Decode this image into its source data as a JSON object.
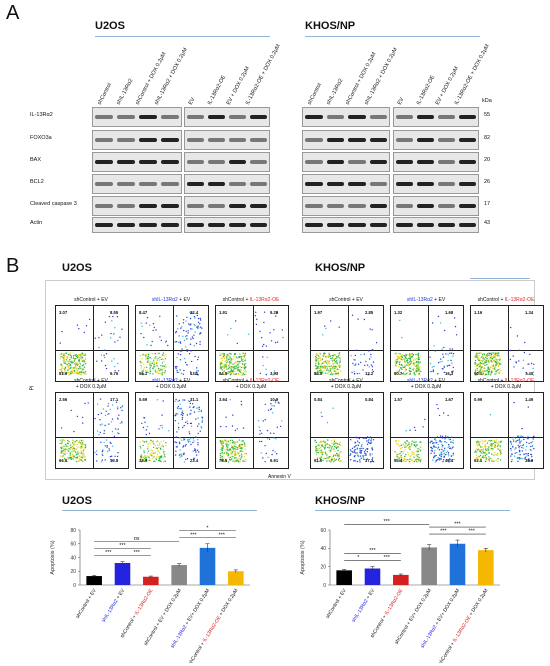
{
  "panel_a": {
    "letter": "A",
    "u2os": {
      "title": "U2OS",
      "lanes_left": [
        "shControl",
        "shIL-13Rα2",
        "shControl + DOX 0.2μM",
        "shIL-13Rα2 + DOX 0.2μM"
      ],
      "lanes_right": [
        "EV",
        "IL-13Rα2-OE",
        "EV + DOX 0.2μM",
        "IL-13Rα2-OE + DOX 0.2μM"
      ]
    },
    "khos": {
      "title": "KHOS/NP",
      "lanes_left": [
        "shControl",
        "shIL-13Rα2",
        "shControl + DOX 0.2μM",
        "shIL-13Rα2 + DOX 0.2μM"
      ],
      "lanes_right": [
        "EV",
        "IL-13Rα2-OE",
        "EV + DOX 0.2μM",
        "IL-13Rα2-OE + DOX 0.2μM"
      ]
    },
    "kda_label": "kDa",
    "rows": [
      {
        "label": "IL-13Rα2",
        "kda": "55"
      },
      {
        "label": "FOXO3a",
        "kda": "82"
      },
      {
        "label": "BAX",
        "kda": "20"
      },
      {
        "label": "BCL2",
        "kda": "26"
      },
      {
        "label": "Cleaved caspase 3",
        "kda": "17"
      },
      {
        "label": "Actin",
        "kda": "43"
      }
    ]
  },
  "panel_b": {
    "letter": "B",
    "u2os_title": "U2OS",
    "khos_title": "KHOS/NP",
    "pi_label": "PI",
    "annexin_label": "Annexin V",
    "u2os_flow": [
      {
        "t1": "shControl + EV",
        "t1b": "",
        "t2": "",
        "t2b": "",
        "ul": "3.07",
        "ur": "8.55",
        "ll": "81.6",
        "lr": "6.76"
      },
      {
        "t1": "shIL-13Rα2",
        "t1b": " + EV",
        "t2": "",
        "t2b": "",
        "ul": "8.47",
        "ur": "22.4",
        "ll": "56.1",
        "lr": "13.1"
      },
      {
        "t1": "shControl + ",
        "t1b": "IL-13Rα2-OE",
        "t2": "",
        "t2b": "",
        "ul": "1.91",
        "ur": "9.28",
        "ll": "84.9",
        "lr": "3.93"
      },
      {
        "t1": "shControl + EV",
        "t1b": "",
        "t2": "+ DOX 0.2μM",
        "t2b": "",
        "ul": "2.56",
        "ur": "17.1",
        "ll": "66.5",
        "lr": "13.8"
      },
      {
        "t1": "shIL-13Rα2",
        "t1b": " + EV",
        "t2": "+ DOX 0.2μM",
        "t2b": "",
        "ul": "5.69",
        "ur": "31.1",
        "ll": "38.9",
        "lr": "23.4"
      },
      {
        "t1": "shControl + ",
        "t1b": "IL-13Rα2-OE",
        "t2": "+ DOX 0.2μM",
        "t2b": "",
        "ul": "3.64",
        "ur": "10.9",
        "ll": "78.5",
        "lr": "6.91"
      }
    ],
    "khos_flow": [
      {
        "t1": "shControl + EV",
        "t1b": "",
        "t2": "",
        "ul": "1.97",
        "ur": "2.85",
        "ll": "83.0",
        "lr": "12.2"
      },
      {
        "t1": "shIL-13Rα2",
        "t1b": " + EV",
        "t2": "",
        "ul": "1.32",
        "ur": "1.68",
        "ll": "80.7",
        "lr": "16.3"
      },
      {
        "t1": "shControl + ",
        "t1b": "IL-13Rα2-OE",
        "t2": "",
        "ul": "1.16",
        "ur": "1.34",
        "ll": "90.1",
        "lr": "7.40"
      },
      {
        "t1": "shControl + EV",
        "t1b": "",
        "t2": "+ DOX 0.2μM",
        "ul": "0.84",
        "ur": "0.84",
        "ll": "61.0",
        "lr": "37.3"
      },
      {
        "t1": "shIL-13Rα2",
        "t1b": " + EV",
        "t2": "+ DOX 0.2μM",
        "ul": "1.57",
        "ur": "1.67",
        "ll": "53.4",
        "lr": "43.4"
      },
      {
        "t1": "shControl + ",
        "t1b": "IL-13Rα2-OE",
        "t2": "+ DOX 0.2μM",
        "ul": "0.99",
        "ur": "1.49",
        "ll": "62.1",
        "lr": "35.6"
      }
    ],
    "colors": {
      "blue": "#1f3bd6",
      "red": "#e02a2a"
    }
  },
  "chart_data": [
    {
      "type": "bar",
      "title": "U2OS",
      "ylabel": "Apoptosis (%)",
      "ylim": [
        0,
        80
      ],
      "yticks": [
        "0",
        "20",
        "40",
        "60",
        "80"
      ],
      "categories": [
        "shControl + EV",
        "shIL-13Rα2 + EV",
        "shControl + IL-13Rα2-OE",
        "shControl + EV + DOX 0.2μM",
        "shIL-13Rα2 + EV+ DOX 0.2μM",
        "shControl + IL-13Rα2-OE + DOX 0.2μM"
      ],
      "values": [
        13,
        32,
        12,
        29,
        54,
        20
      ],
      "errors": [
        1,
        2,
        1,
        2,
        6,
        2
      ],
      "bar_colors": [
        "#000000",
        "#2424e0",
        "#d42020",
        "#888888",
        "#1e72d8",
        "#f5b800"
      ],
      "significance": [
        {
          "text": "***",
          "from": 0,
          "to": 1
        },
        {
          "text": "***",
          "from": 1,
          "to": 2
        },
        {
          "text": "ns",
          "from": 0,
          "to": 3
        },
        {
          "text": "***",
          "from": 0,
          "to": 2
        },
        {
          "text": "***",
          "from": 3,
          "to": 4
        },
        {
          "text": "***",
          "from": 4,
          "to": 5
        },
        {
          "text": "*",
          "from": 3,
          "to": 5
        }
      ]
    },
    {
      "type": "bar",
      "title": "KHOS/NP",
      "ylabel": "Apoptosis (%)",
      "ylim": [
        0,
        60
      ],
      "yticks": [
        "0",
        "20",
        "40",
        "60"
      ],
      "categories": [
        "shControl + EV",
        "shIL-13Rα2 + EV",
        "shControl + IL-13Rα2-OE",
        "shControl + EV+ DOX 0.2μM",
        "shIL-13Rα2 + EV+ DOX 0.2μM",
        "shControl + IL-13Rα2-OE + DOX 0.2μM"
      ],
      "values": [
        16,
        18,
        11,
        41,
        45,
        38
      ],
      "errors": [
        1,
        2,
        1,
        3,
        4,
        2
      ],
      "bar_colors": [
        "#000000",
        "#2424e0",
        "#d42020",
        "#888888",
        "#1e72d8",
        "#f5b800"
      ],
      "significance": [
        {
          "text": "*",
          "from": 0,
          "to": 1
        },
        {
          "text": "***",
          "from": 1,
          "to": 2
        },
        {
          "text": "***",
          "from": 0,
          "to": 2
        },
        {
          "text": "***",
          "from": 0,
          "to": 3
        },
        {
          "text": "***",
          "from": 3,
          "to": 4
        },
        {
          "text": "***",
          "from": 4,
          "to": 5
        },
        {
          "text": "***",
          "from": 3,
          "to": 5
        }
      ]
    }
  ]
}
